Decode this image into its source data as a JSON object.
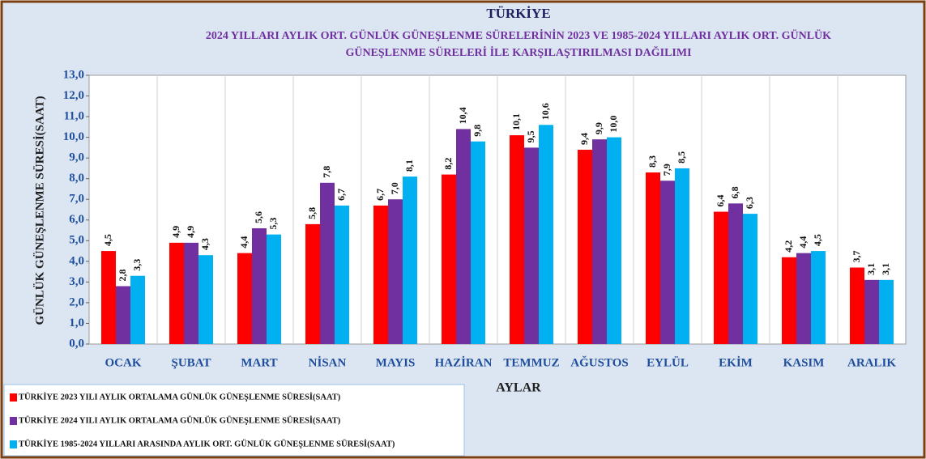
{
  "chart_data": {
    "type": "bar",
    "title": "TÜRKİYE",
    "subtitle": [
      "2024 YILLARI AYLIK ORT. GÜNLÜK GÜNEŞLENME SÜRELERİNİN 2023 VE 1985-2024  YILLARI AYLIK ORT. GÜNLÜK",
      "GÜNEŞLENME SÜRELERİ İLE KARŞILAŞTIRILMASI DAĞILIMI"
    ],
    "ylabel": "GÜNLÜK GÜNEŞLENME  SÜRESİ(SAAT)",
    "xlabel": "AYLAR",
    "categories": [
      "OCAK",
      "ŞUBAT",
      "MART",
      "NİSAN",
      "MAYIS",
      "HAZİRAN",
      "TEMMUZ",
      "AĞUSTOS",
      "EYLÜL",
      "EKİM",
      "KASIM",
      "ARALIK"
    ],
    "series": [
      {
        "name": "TÜRKİYE  2023 YILI AYLIK ORTALAMA GÜNLÜK GÜNEŞLENME SÜRESİ(SAAT)",
        "color": "#ff0000",
        "values": [
          4.5,
          4.9,
          4.4,
          5.8,
          6.7,
          8.2,
          10.1,
          9.4,
          8.3,
          6.4,
          4.2,
          3.7
        ],
        "value_labels": [
          "4,5",
          "4,9",
          "4,4",
          "5,8",
          "6,7",
          "8,2",
          "10,1",
          "9,4",
          "8,3",
          "6,4",
          "4,2",
          "3,7"
        ]
      },
      {
        "name": "TÜRKİYE  2024 YILI AYLIK ORTALAMA GÜNLÜK GÜNEŞLENME  SÜRESİ(SAAT)",
        "color": "#7030a0",
        "values": [
          2.8,
          4.9,
          5.6,
          7.8,
          7.0,
          10.4,
          9.5,
          9.9,
          7.9,
          6.8,
          4.4,
          3.1
        ],
        "value_labels": [
          "2,8",
          "4,9",
          "5,6",
          "7,8",
          "7,0",
          "10,4",
          "9,5",
          "9,9",
          "7,9",
          "6,8",
          "4,4",
          "3,1"
        ]
      },
      {
        "name": "TÜRKİYE 1985-2024 YILLARI ARASINDA AYLIK ORT. GÜNLÜK GÜNEŞLENME SÜRESİ(SAAT)",
        "color": "#00b0f0",
        "values": [
          3.3,
          4.3,
          5.3,
          6.7,
          8.1,
          9.8,
          10.6,
          10.0,
          8.5,
          6.3,
          4.5,
          3.1
        ],
        "value_labels": [
          "3,3",
          "4,3",
          "5,3",
          "6,7",
          "8,1",
          "9,8",
          "10,6",
          "10,0",
          "8,5",
          "6,3",
          "4,5",
          "3,1"
        ]
      }
    ],
    "ylim": [
      0,
      13
    ],
    "yticks": [
      {
        "value": 0,
        "label": "0,0"
      },
      {
        "value": 1,
        "label": "1,0"
      },
      {
        "value": 2,
        "label": "2,0"
      },
      {
        "value": 3,
        "label": "3,0"
      },
      {
        "value": 4,
        "label": "4,0"
      },
      {
        "value": 5,
        "label": "5,0"
      },
      {
        "value": 6,
        "label": "6,0"
      },
      {
        "value": 7,
        "label": "7,0"
      },
      {
        "value": 8,
        "label": "8,0"
      },
      {
        "value": 9,
        "label": "9,0"
      },
      {
        "value": 10,
        "label": "10,0"
      },
      {
        "value": 11,
        "label": "11,0"
      },
      {
        "value": 12,
        "label": "12,0"
      },
      {
        "value": 13,
        "label": "13,0"
      }
    ],
    "legend": "lower left"
  }
}
